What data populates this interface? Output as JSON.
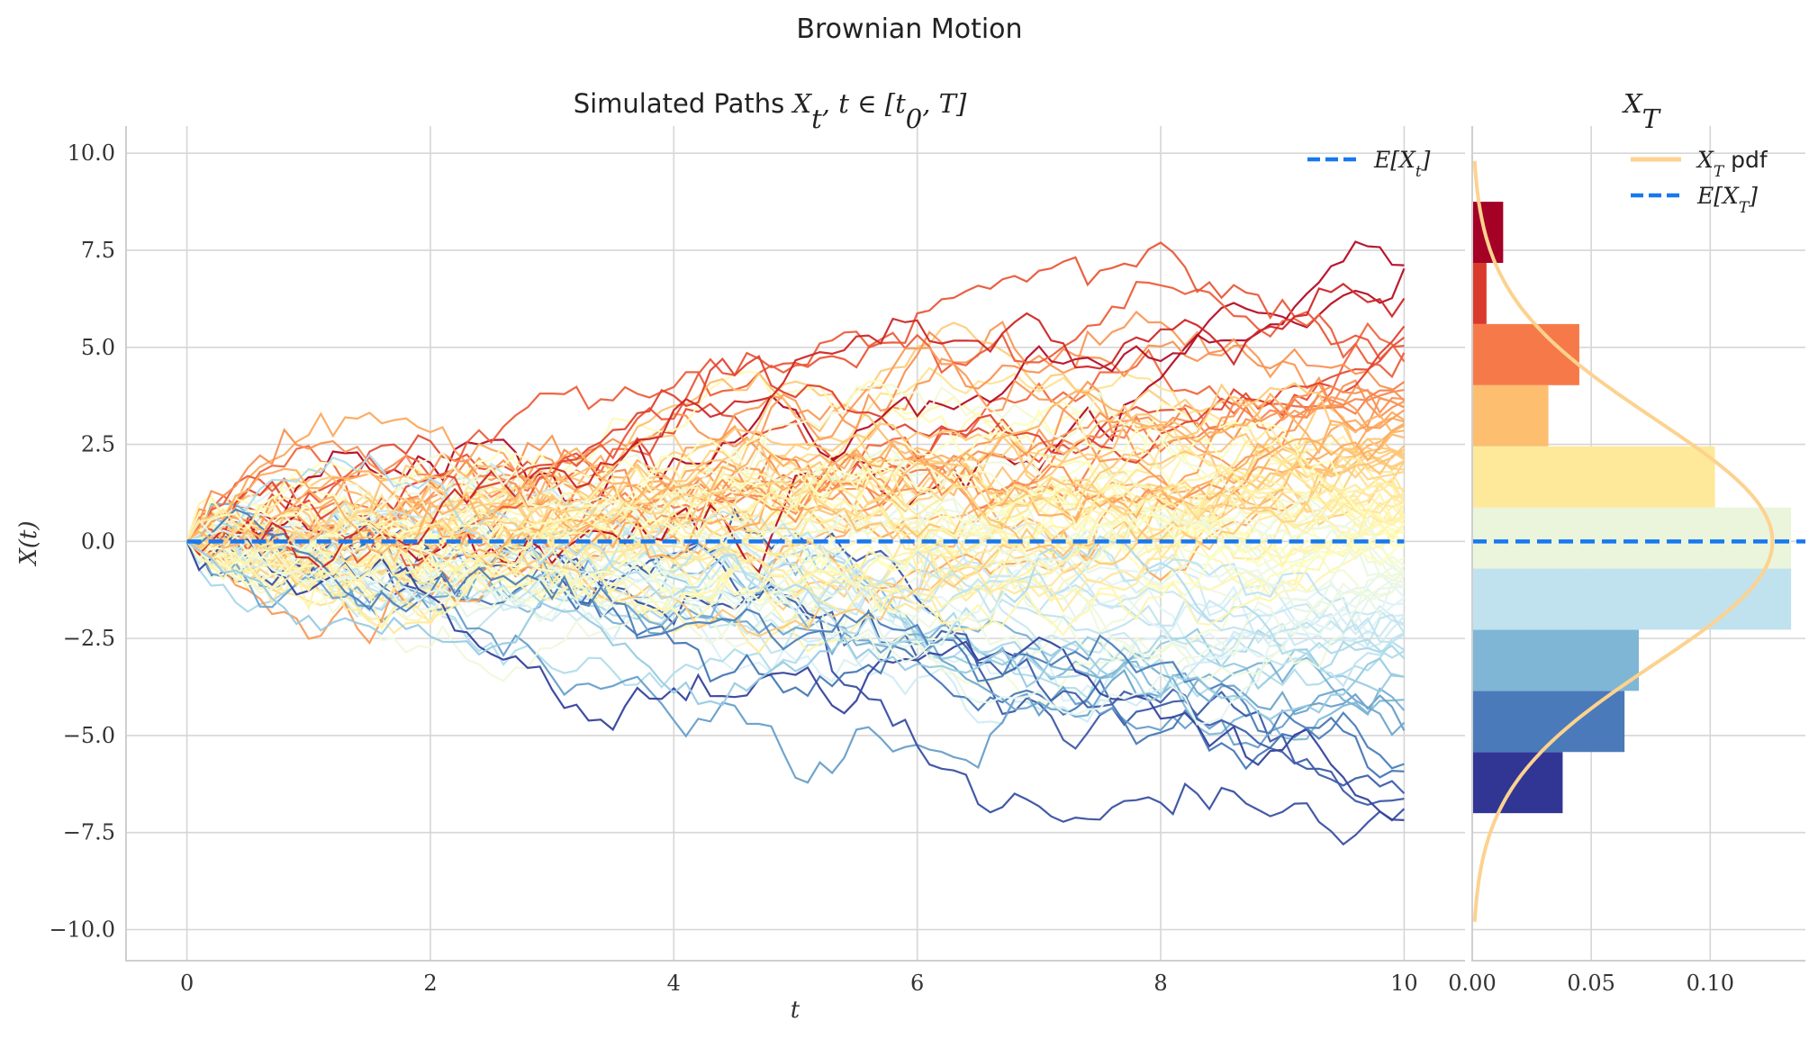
{
  "figure": {
    "suptitle": "Brownian Motion"
  },
  "chart_data": [
    {
      "type": "line",
      "title_prefix": "Simulated Paths ",
      "title_math": "X",
      "title_math_sub": "t",
      "title_math_rest": ", t ∈ [t",
      "title_math_sub2": "0",
      "title_math_end": ", T]",
      "xlabel": "t",
      "ylabel": "X(t)",
      "xlim": [
        -0.5,
        10.5
      ],
      "ylim": [
        -10.8,
        10.7
      ],
      "xticks": [
        0,
        2,
        4,
        6,
        8,
        10
      ],
      "xtick_labels": [
        "0",
        "2",
        "4",
        "6",
        "8",
        "10"
      ],
      "yticks": [
        10,
        7.5,
        5,
        2.5,
        0,
        -2.5,
        -5,
        -7.5,
        -10
      ],
      "ytick_labels": [
        "10.0",
        "7.5",
        "5.0",
        "2.5",
        "0.0",
        "−2.5",
        "−5.0",
        "−7.5",
        "−10.0"
      ],
      "grid": true,
      "legend_position": "top-right",
      "legend": [
        {
          "label_math": "E[X",
          "label_sub": "t",
          "label_end": "]",
          "style": "dashed",
          "color": "#1878f0"
        }
      ],
      "mean_line": {
        "y": 0,
        "color": "#1878f0"
      },
      "paths": {
        "count": 100,
        "t_start": 0,
        "t_end": 10,
        "steps": 100,
        "x0": 0,
        "colormap": "RdYlBu_r by terminal value"
      }
    },
    {
      "type": "bar",
      "orientation": "horizontal",
      "title_math": "X",
      "title_math_sub": "T",
      "xlim": [
        0,
        0.14
      ],
      "xticks": [
        0.0,
        0.05,
        0.1
      ],
      "xtick_labels": [
        "0.00",
        "0.05",
        "0.10"
      ],
      "ylim": [
        -10.8,
        10.7
      ],
      "bins": [
        {
          "y_low": -7.0,
          "y_high": -5.425,
          "density": 0.038,
          "color": "#313695"
        },
        {
          "y_low": -5.425,
          "y_high": -3.85,
          "density": 0.064,
          "color": "#4a7ab9"
        },
        {
          "y_low": -3.85,
          "y_high": -2.275,
          "density": 0.07,
          "color": "#7fb6d6"
        },
        {
          "y_low": -2.275,
          "y_high": -0.7,
          "density": 0.134,
          "color": "#c0e2ef"
        },
        {
          "y_low": -0.7,
          "y_high": 0.875,
          "density": 0.134,
          "color": "#eaf5dc"
        },
        {
          "y_low": 0.875,
          "y_high": 2.45,
          "density": 0.102,
          "color": "#fee99a"
        },
        {
          "y_low": 2.45,
          "y_high": 4.025,
          "density": 0.032,
          "color": "#fdbe70"
        },
        {
          "y_low": 4.025,
          "y_high": 5.6,
          "density": 0.045,
          "color": "#f67a49"
        },
        {
          "y_low": 5.6,
          "y_high": 7.175,
          "density": 0.006,
          "color": "#da3a2b"
        },
        {
          "y_low": 7.175,
          "y_high": 8.75,
          "density": 0.013,
          "color": "#a50026"
        }
      ],
      "pdf": {
        "mean": 0,
        "std": 3.1623,
        "range": [
          -9.8,
          9.8
        ],
        "color": "#fdd28f"
      },
      "mean_line": {
        "y": 0,
        "color": "#1878f0"
      },
      "legend_position": "top-right",
      "legend": [
        {
          "label_math": "X",
          "label_sub": "T",
          "label_end": " pdf",
          "style": "solid",
          "color": "#fdd28f"
        },
        {
          "label_math": "E[X",
          "label_sub": "T",
          "label_end": "]",
          "style": "dashed",
          "color": "#1878f0"
        }
      ]
    }
  ]
}
